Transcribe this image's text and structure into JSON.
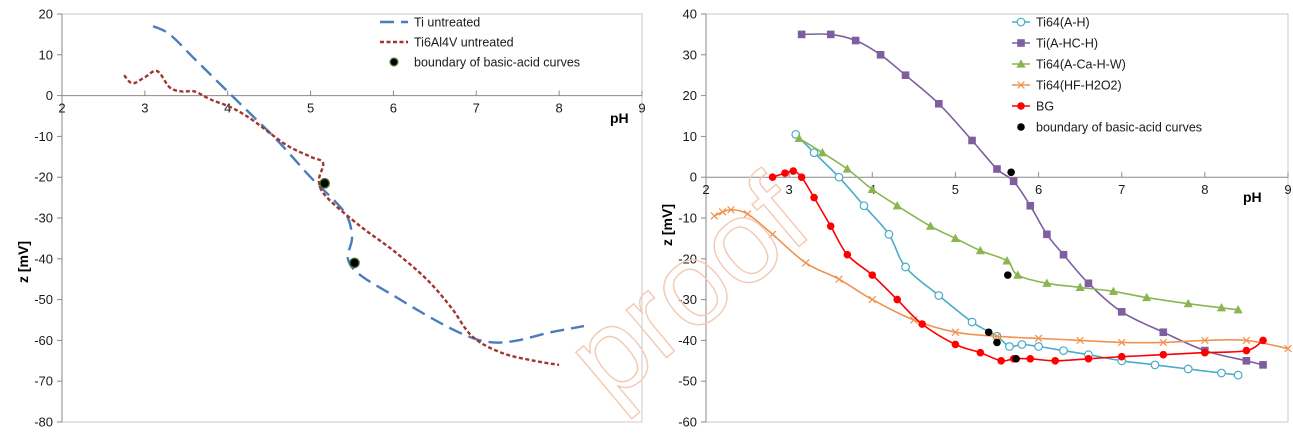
{
  "watermark": "proof",
  "chart_data": [
    {
      "type": "line",
      "title": "",
      "xlabel": "pH",
      "ylabel": "z [mV]",
      "xlim": [
        2,
        9
      ],
      "ylim": [
        -80,
        20
      ],
      "xticks": [
        2,
        3,
        4,
        5,
        6,
        7,
        8,
        9
      ],
      "yticks": [
        20,
        10,
        0,
        -10,
        -20,
        -30,
        -40,
        -50,
        -60,
        -70,
        -80
      ],
      "grid": false,
      "legend_position": "top-right",
      "series": [
        {
          "name": "Ti untreated",
          "color": "#4a7ebb",
          "style": "dashed",
          "x": [
            3.1,
            3.3,
            3.6,
            3.9,
            4.2,
            4.6,
            5.0,
            5.3,
            5.45,
            5.5,
            5.45,
            5.6,
            6.0,
            6.5,
            6.9,
            7.2,
            7.5,
            7.9,
            8.3
          ],
          "y": [
            17,
            15,
            9,
            3,
            -3,
            -11,
            -20,
            -26,
            -30,
            -35,
            -40,
            -44,
            -49,
            -55,
            -59,
            -60.5,
            -60,
            -58,
            -56.5
          ]
        },
        {
          "name": "Ti6Al4V untreated",
          "color": "#a33530",
          "style": "dotted",
          "x": [
            2.75,
            2.85,
            3.0,
            3.15,
            3.3,
            3.45,
            3.6,
            3.8,
            4.05,
            4.3,
            4.7,
            5.0,
            5.15,
            5.1,
            5.2,
            5.6,
            6.0,
            6.4,
            6.7,
            6.95,
            7.3,
            7.7,
            8.0
          ],
          "y": [
            5,
            3,
            4.5,
            6,
            2,
            1,
            1,
            -1,
            -3,
            -6,
            -12,
            -15,
            -16.5,
            -21,
            -25,
            -32,
            -38,
            -45,
            -52,
            -59,
            -63,
            -65,
            -66
          ]
        },
        {
          "name": "boundary of basic-acid curves",
          "color": "#000000",
          "style": "markers",
          "x": [
            5.17,
            5.53
          ],
          "y": [
            -21.5,
            -41
          ]
        }
      ]
    },
    {
      "type": "line",
      "title": "",
      "xlabel": "pH",
      "ylabel": "z [mV]",
      "xlim": [
        2,
        9
      ],
      "ylim": [
        -60,
        40
      ],
      "xticks": [
        2,
        3,
        4,
        5,
        6,
        7,
        8,
        9
      ],
      "yticks": [
        40,
        30,
        20,
        10,
        0,
        -10,
        -20,
        -30,
        -40,
        -50,
        -60
      ],
      "grid": false,
      "legend_position": "top-right",
      "series": [
        {
          "name": "Ti64(A-H)",
          "color": "#4aacc6",
          "marker": "circle-open",
          "x": [
            3.08,
            3.3,
            3.6,
            3.9,
            4.2,
            4.4,
            4.8,
            5.2,
            5.5,
            5.65,
            5.8,
            6.0,
            6.3,
            6.6,
            7.0,
            7.4,
            7.8,
            8.2,
            8.4
          ],
          "y": [
            10.5,
            6,
            0,
            -7,
            -14,
            -22,
            -29,
            -35.5,
            -39,
            -41.5,
            -41,
            -41.5,
            -42.5,
            -43.5,
            -45,
            -46,
            -47,
            -48,
            -48.5
          ]
        },
        {
          "name": "Ti(A-HC-H)",
          "color": "#7d5fa0",
          "marker": "square",
          "x": [
            3.15,
            3.5,
            3.8,
            4.1,
            4.4,
            4.8,
            5.2,
            5.5,
            5.7,
            5.9,
            6.1,
            6.3,
            6.6,
            7.0,
            7.5,
            8.0,
            8.5,
            8.7
          ],
          "y": [
            35,
            35,
            33.5,
            30,
            25,
            18,
            9,
            2,
            -1,
            -7,
            -14,
            -19,
            -26,
            -33,
            -38,
            -42.5,
            -45,
            -46
          ]
        },
        {
          "name": "Ti64(A-Ca-H-W)",
          "color": "#8ab552",
          "marker": "triangle",
          "x": [
            3.12,
            3.4,
            3.7,
            4.0,
            4.3,
            4.7,
            5.0,
            5.3,
            5.62,
            5.75,
            6.1,
            6.5,
            6.9,
            7.3,
            7.8,
            8.2,
            8.4
          ],
          "y": [
            9.5,
            6,
            2,
            -3,
            -7,
            -12,
            -15,
            -18,
            -20.5,
            -24,
            -26,
            -27,
            -28,
            -29.5,
            -31,
            -32,
            -32.5
          ]
        },
        {
          "name": "Ti64(HF-H2O2)",
          "color": "#f0934e",
          "marker": "cross",
          "x": [
            2.1,
            2.2,
            2.3,
            2.5,
            2.8,
            3.2,
            3.6,
            4.0,
            4.5,
            5.0,
            5.5,
            6.0,
            6.5,
            7.0,
            7.5,
            8.0,
            8.5,
            9.0
          ],
          "y": [
            -9.5,
            -8.5,
            -8,
            -9,
            -14,
            -21,
            -25,
            -30,
            -35,
            -38,
            -39,
            -39.5,
            -40,
            -40.5,
            -40.5,
            -40,
            -40,
            -42
          ]
        },
        {
          "name": "BG",
          "color": "#ff0000",
          "marker": "dot",
          "x": [
            2.8,
            2.95,
            3.05,
            3.15,
            3.3,
            3.5,
            3.7,
            4.0,
            4.3,
            4.6,
            5.0,
            5.3,
            5.55,
            5.7,
            5.9,
            6.2,
            6.6,
            7.0,
            7.5,
            8.0,
            8.5,
            8.7
          ],
          "y": [
            0,
            1,
            1.5,
            0,
            -5,
            -12,
            -19,
            -24,
            -30,
            -36,
            -41,
            -43,
            -45,
            -44.5,
            -44.5,
            -45,
            -44.5,
            -44,
            -43.5,
            -43,
            -42.5,
            -40
          ]
        },
        {
          "name": "boundary of basic-acid curves",
          "color": "#000000",
          "marker": "dot",
          "x": [
            5.67,
            5.63,
            5.4,
            5.5,
            5.73
          ],
          "y": [
            1.2,
            -24,
            -38,
            -40.5,
            -44.5
          ]
        }
      ]
    }
  ]
}
